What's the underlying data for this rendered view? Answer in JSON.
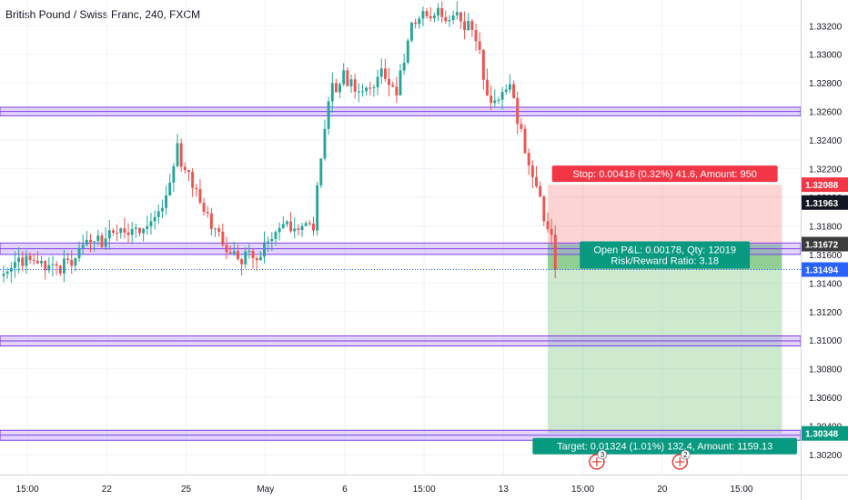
{
  "header": {
    "title": "British Pound / Swiss Franc, 240, FXCM"
  },
  "colors": {
    "up": "#26a69a",
    "down": "#ef5350",
    "zone_stroke": "#7b3fe4",
    "zone_fill": "#b388ff",
    "stop_fill": "#ef5350",
    "target_fill": "#4caf50",
    "current_price": "#2962ff",
    "grid": "#f0f3fa",
    "axis_text": "#131722"
  },
  "chart_data": {
    "type": "candlestick",
    "symbol": "British Pound / Swiss Franc",
    "interval": "240",
    "source": "FXCM",
    "y_axis": {
      "ticks": [
        "1.33200",
        "1.33000",
        "1.32800",
        "1.32600",
        "1.32400",
        "1.32200",
        "1.32000",
        "1.31800",
        "1.31600",
        "1.31400",
        "1.31200",
        "1.31000",
        "1.30800",
        "1.30600",
        "1.30400",
        "1.30200"
      ],
      "range": [
        1.3006,
        1.3338
      ]
    },
    "x_axis": {
      "ticks": [
        "15:00",
        "22",
        "25",
        "May",
        "6",
        "15:00",
        "13",
        "15:00",
        "20",
        "15:00"
      ],
      "index_range": [
        0,
        210
      ]
    },
    "price_labels": {
      "stop": "1.32088",
      "level_1": "1.31963",
      "entry": "1.31672",
      "current": "1.31494",
      "target": "1.30348"
    },
    "horizontal_zones": [
      {
        "top": 1.3263,
        "bottom": 1.3257
      },
      {
        "top": 1.3168,
        "bottom": 1.316
      },
      {
        "top": 1.3103,
        "bottom": 1.3096
      },
      {
        "top": 1.3037,
        "bottom": 1.303
      }
    ],
    "position": {
      "side": "short",
      "entry": 1.31672,
      "stop": 1.32088,
      "target": 1.30348,
      "start_index": 144,
      "end_index": 206,
      "stop_label": "Stop: 0.00416 (0.32%) 41.6, Amount: 950",
      "pnl_label": "Open P&L: 0.00178, Qty: 12019",
      "rr_label": "Risk/Reward Ratio: 3.18",
      "target_label": "Target: 0.01324 (1.01%) 132.4, Amount: 1159.13"
    },
    "events": [
      {
        "index": 157,
        "badge": "3"
      },
      {
        "index": 179,
        "badge": "2"
      }
    ],
    "anchors": [
      [
        0,
        1.3145
      ],
      [
        6,
        1.3158
      ],
      [
        12,
        1.3148
      ],
      [
        17,
        1.3153
      ],
      [
        22,
        1.3165
      ],
      [
        27,
        1.317
      ],
      [
        31,
        1.3178
      ],
      [
        36,
        1.3172
      ],
      [
        40,
        1.3183
      ],
      [
        44,
        1.3206
      ],
      [
        46,
        1.3234
      ],
      [
        50,
        1.3205
      ],
      [
        55,
        1.3183
      ],
      [
        59,
        1.3166
      ],
      [
        63,
        1.3158
      ],
      [
        67,
        1.3158
      ],
      [
        70,
        1.3168
      ],
      [
        74,
        1.3178
      ],
      [
        78,
        1.3182
      ],
      [
        82,
        1.318
      ],
      [
        84,
        1.323
      ],
      [
        86,
        1.3272
      ],
      [
        90,
        1.3285
      ],
      [
        95,
        1.3272
      ],
      [
        100,
        1.3287
      ],
      [
        104,
        1.3275
      ],
      [
        108,
        1.3323
      ],
      [
        112,
        1.333
      ],
      [
        116,
        1.3326
      ],
      [
        120,
        1.333
      ],
      [
        123,
        1.3318
      ],
      [
        126,
        1.33
      ],
      [
        128,
        1.327
      ],
      [
        131,
        1.327
      ],
      [
        134,
        1.328
      ],
      [
        138,
        1.3232
      ],
      [
        141,
        1.3205
      ],
      [
        143,
        1.3188
      ],
      [
        145,
        1.317
      ],
      [
        146,
        1.315
      ]
    ]
  }
}
